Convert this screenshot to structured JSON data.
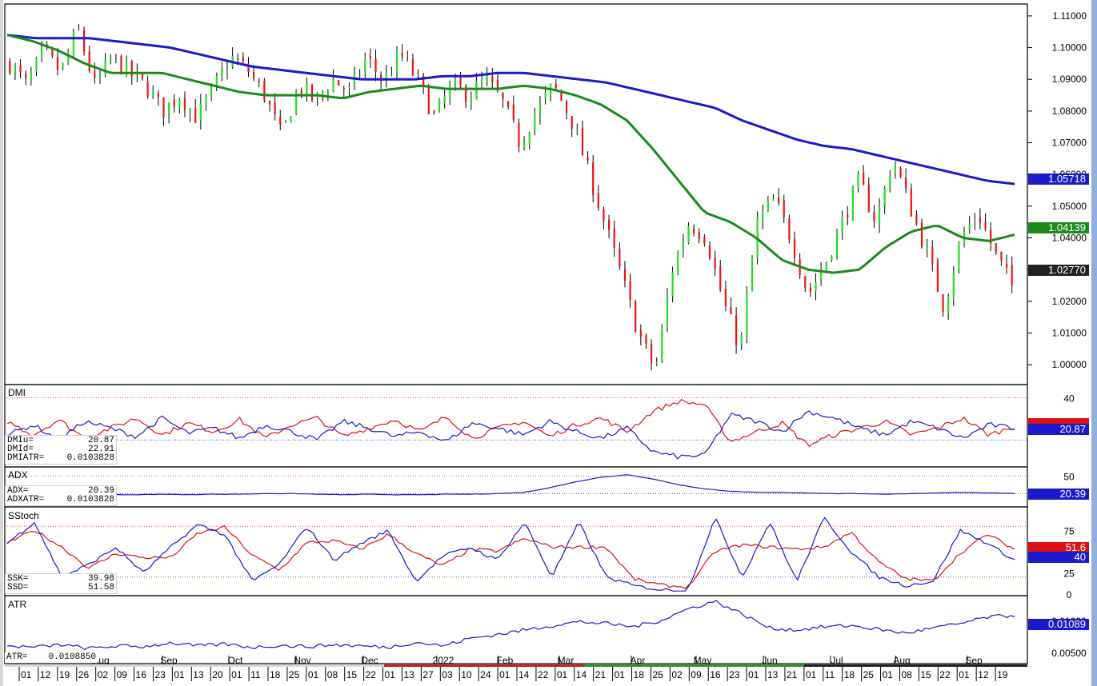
{
  "chart_data": [
    {
      "type": "candlestick",
      "panel": "price",
      "ylim": [
        0.995,
        1.113
      ],
      "yticks": [
        "1.11000",
        "1.10000",
        "1.09000",
        "1.08000",
        "1.07000",
        "1.06000",
        "1.05000",
        "1.04000",
        "1.03000",
        "1.02000",
        "1.01000",
        "1.00000"
      ],
      "ytick_values": [
        1.11,
        1.1,
        1.09,
        1.08,
        1.07,
        1.06,
        1.05,
        1.04,
        1.03,
        1.02,
        1.01,
        1.0
      ],
      "last_value": "1.02770",
      "series": [
        {
          "name": "",
          "color": "#1a1acc",
          "values": [
            1.104,
            1.103,
            1.103,
            1.103,
            1.102,
            1.101,
            1.1,
            1.098,
            1.096,
            1.094,
            1.093,
            1.092,
            1.091,
            1.09,
            1.09,
            1.09,
            1.091,
            1.091,
            1.092,
            1.092,
            1.091,
            1.09,
            1.089,
            1.087,
            1.085,
            1.083,
            1.081,
            1.077,
            1.074,
            1.071,
            1.069,
            1.068,
            1.066,
            1.064,
            1.062,
            1.06,
            1.058,
            1.057
          ],
          "badge": "1.05718"
        },
        {
          "name": "",
          "color": "#1a8a1a",
          "values": [
            1.104,
            1.102,
            1.099,
            1.095,
            1.092,
            1.092,
            1.092,
            1.09,
            1.088,
            1.086,
            1.085,
            1.085,
            1.085,
            1.084,
            1.086,
            1.087,
            1.088,
            1.087,
            1.087,
            1.087,
            1.088,
            1.087,
            1.085,
            1.082,
            1.077,
            1.068,
            1.058,
            1.048,
            1.045,
            1.04,
            1.033,
            1.03,
            1.029,
            1.03,
            1.037,
            1.042,
            1.044,
            1.04,
            1.039,
            1.041
          ],
          "badge": "1.04139"
        }
      ]
    },
    {
      "type": "line",
      "panel": "DMI",
      "title": "DMI",
      "ylim": [
        0,
        45
      ],
      "ytick_labels": [
        "40"
      ],
      "ytick_values": [
        40
      ],
      "series": [
        {
          "name": "DMIu",
          "color": "#1a1acc",
          "badge": "20.87"
        },
        {
          "name": "DMId",
          "color": "#dd1111",
          "badge": "22.91"
        }
      ]
    },
    {
      "type": "line",
      "panel": "ADX",
      "title": "ADX",
      "ylim": [
        0,
        60
      ],
      "ytick_labels": [
        "50"
      ],
      "ytick_values": [
        50
      ],
      "series": [
        {
          "name": "ADX",
          "color": "#1a1acc",
          "values": [
            20,
            18,
            17,
            17,
            18,
            18,
            19,
            18,
            19,
            19,
            20,
            20,
            19,
            18,
            19,
            18,
            18,
            19,
            19,
            20,
            22,
            30,
            40,
            48,
            52,
            45,
            35,
            28,
            24,
            22,
            22,
            21,
            20,
            20,
            19,
            20,
            21,
            22,
            21,
            20
          ],
          "badge": "20.39"
        }
      ]
    },
    {
      "type": "line",
      "panel": "SStoch",
      "title": "SStoch",
      "ylim": [
        0,
        100
      ],
      "ytick_labels": [
        "75",
        "50",
        "25",
        "0"
      ],
      "ytick_values": [
        75,
        50,
        25,
        0
      ],
      "series": [
        {
          "name": "SSK",
          "color": "#1a1acc",
          "badge": "40"
        },
        {
          "name": "SSD",
          "color": "#dd1111",
          "badge": "51.6"
        }
      ]
    },
    {
      "type": "line",
      "panel": "ATR",
      "title": "ATR",
      "ylim": [
        0.0035,
        0.0135
      ],
      "ytick_labels": [
        "0.01000",
        "0.00500"
      ],
      "ytick_values": [
        0.01,
        0.005
      ],
      "series": [
        {
          "name": "ATR",
          "color": "#1a1acc",
          "badge": "0.01089"
        }
      ]
    }
  ],
  "readouts": {
    "dmi": [
      {
        "k": "DMIu=",
        "v": "20.87"
      },
      {
        "k": "DMId=",
        "v": "22.91"
      },
      {
        "k": "DMIATR=",
        "v": "0.0103828"
      }
    ],
    "adx": [
      {
        "k": "ADX=",
        "v": "20.39"
      },
      {
        "k": "ADXATR=",
        "v": "0.0103828"
      }
    ],
    "sstoch": [
      {
        "k": "SSK=",
        "v": "39.98"
      },
      {
        "k": "SSD=",
        "v": "51.58"
      }
    ],
    "atr": [
      {
        "k": "ATR=",
        "v": "0.0108850"
      }
    ]
  },
  "time_axis": {
    "months": [
      "Aug",
      "Sep",
      "Oct",
      "Nov",
      "Dec",
      "2022",
      "Feb",
      "Mar",
      "Apr",
      "May",
      "Jun",
      "Jul",
      "Aug",
      "Sep"
    ],
    "days": [
      "01",
      "12",
      "19",
      "26",
      "02",
      "09",
      "16",
      "23",
      "01",
      "13",
      "20",
      "01",
      "11",
      "18",
      "25",
      "01",
      "08",
      "15",
      "22",
      "01",
      "13",
      "27",
      "03",
      "10",
      "24",
      "01",
      "14",
      "22",
      "01",
      "14",
      "21",
      "01",
      "18",
      "25",
      "02",
      "09",
      "16",
      "23",
      "01",
      "13",
      "21",
      "01",
      "11",
      "18",
      "25",
      "01",
      "08",
      "15",
      "22",
      "01",
      "12",
      "19"
    ]
  },
  "colors": {
    "up": "#22dd22",
    "down": "#ee1111",
    "wick": "#000000",
    "ma_long": "#1a1acc",
    "ma_mid": "#1a8a1a",
    "grid_red": "#dd3333",
    "grid_blue": "#3333bb",
    "last_badge": "#222222"
  }
}
